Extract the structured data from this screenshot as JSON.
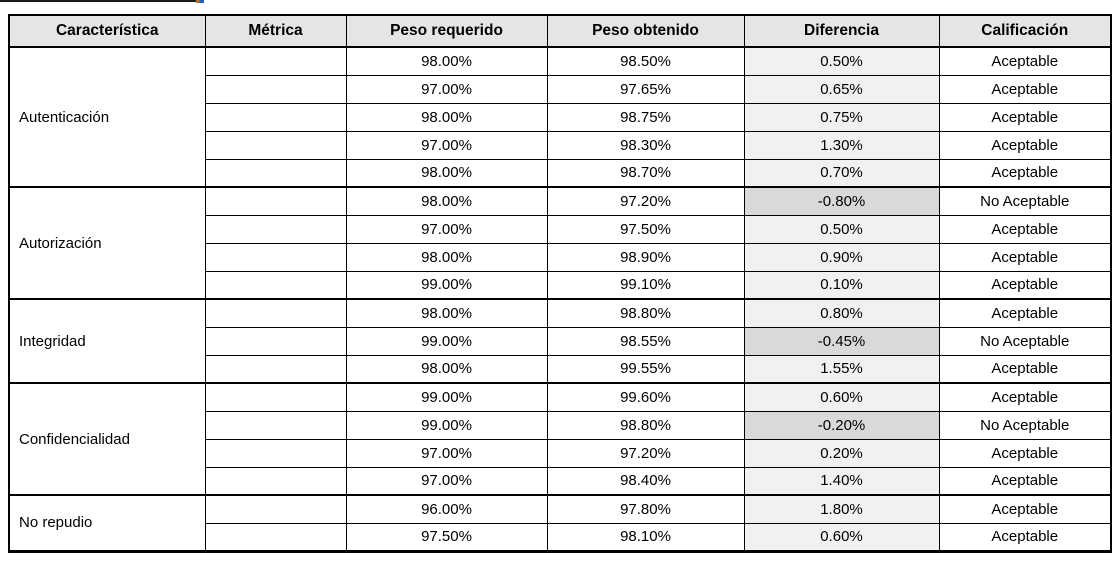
{
  "colors": {
    "header_bg": "#e5e5e5",
    "diff_bg": "#f1f1f1",
    "diff_negative_bg": "#d9d9d9",
    "border": "#000000",
    "text": "#000000"
  },
  "table": {
    "columns": [
      "Característica",
      "Métrica",
      "Peso requerido",
      "Peso obtenido",
      "Diferencia",
      "Calificación"
    ],
    "ratings": {
      "acceptable": "Aceptable",
      "not_acceptable": "No Aceptable"
    },
    "groups": [
      {
        "caracteristica": "Autenticación",
        "rows": [
          {
            "metrica": "",
            "peso_requerido": "98.00%",
            "peso_obtenido": "98.50%",
            "diferencia": "0.50%",
            "calificacion": "Aceptable",
            "negative": false
          },
          {
            "metrica": "",
            "peso_requerido": "97.00%",
            "peso_obtenido": "97.65%",
            "diferencia": "0.65%",
            "calificacion": "Aceptable",
            "negative": false
          },
          {
            "metrica": "",
            "peso_requerido": "98.00%",
            "peso_obtenido": "98.75%",
            "diferencia": "0.75%",
            "calificacion": "Aceptable",
            "negative": false
          },
          {
            "metrica": "",
            "peso_requerido": "97.00%",
            "peso_obtenido": "98.30%",
            "diferencia": "1.30%",
            "calificacion": "Aceptable",
            "negative": false
          },
          {
            "metrica": "",
            "peso_requerido": "98.00%",
            "peso_obtenido": "98.70%",
            "diferencia": "0.70%",
            "calificacion": "Aceptable",
            "negative": false
          }
        ]
      },
      {
        "caracteristica": "Autorización",
        "rows": [
          {
            "metrica": "",
            "peso_requerido": "98.00%",
            "peso_obtenido": "97.20%",
            "diferencia": "-0.80%",
            "calificacion": "No Aceptable",
            "negative": true
          },
          {
            "metrica": "",
            "peso_requerido": "97.00%",
            "peso_obtenido": "97.50%",
            "diferencia": "0.50%",
            "calificacion": "Aceptable",
            "negative": false
          },
          {
            "metrica": "",
            "peso_requerido": "98.00%",
            "peso_obtenido": "98.90%",
            "diferencia": "0.90%",
            "calificacion": "Aceptable",
            "negative": false
          },
          {
            "metrica": "",
            "peso_requerido": "99.00%",
            "peso_obtenido": "99.10%",
            "diferencia": "0.10%",
            "calificacion": "Aceptable",
            "negative": false
          }
        ]
      },
      {
        "caracteristica": "Integridad",
        "rows": [
          {
            "metrica": "",
            "peso_requerido": "98.00%",
            "peso_obtenido": "98.80%",
            "diferencia": "0.80%",
            "calificacion": "Aceptable",
            "negative": false
          },
          {
            "metrica": "",
            "peso_requerido": "99.00%",
            "peso_obtenido": "98.55%",
            "diferencia": "-0.45%",
            "calificacion": "No Aceptable",
            "negative": true
          },
          {
            "metrica": "",
            "peso_requerido": "98.00%",
            "peso_obtenido": "99.55%",
            "diferencia": "1.55%",
            "calificacion": "Aceptable",
            "negative": false
          }
        ]
      },
      {
        "caracteristica": "Confidencialidad",
        "rows": [
          {
            "metrica": "",
            "peso_requerido": "99.00%",
            "peso_obtenido": "99.60%",
            "diferencia": "0.60%",
            "calificacion": "Aceptable",
            "negative": false
          },
          {
            "metrica": "",
            "peso_requerido": "99.00%",
            "peso_obtenido": "98.80%",
            "diferencia": "-0.20%",
            "calificacion": "No Aceptable",
            "negative": true
          },
          {
            "metrica": "",
            "peso_requerido": "97.00%",
            "peso_obtenido": "97.20%",
            "diferencia": "0.20%",
            "calificacion": "Aceptable",
            "negative": false
          },
          {
            "metrica": "",
            "peso_requerido": "97.00%",
            "peso_obtenido": "98.40%",
            "diferencia": "1.40%",
            "calificacion": "Aceptable",
            "negative": false
          }
        ]
      },
      {
        "caracteristica": "No repudio",
        "rows": [
          {
            "metrica": "",
            "peso_requerido": "96.00%",
            "peso_obtenido": "97.80%",
            "diferencia": "1.80%",
            "calificacion": "Aceptable",
            "negative": false
          },
          {
            "metrica": "",
            "peso_requerido": "97.50%",
            "peso_obtenido": "98.10%",
            "diferencia": "0.60%",
            "calificacion": "Aceptable",
            "negative": false
          }
        ]
      }
    ]
  }
}
